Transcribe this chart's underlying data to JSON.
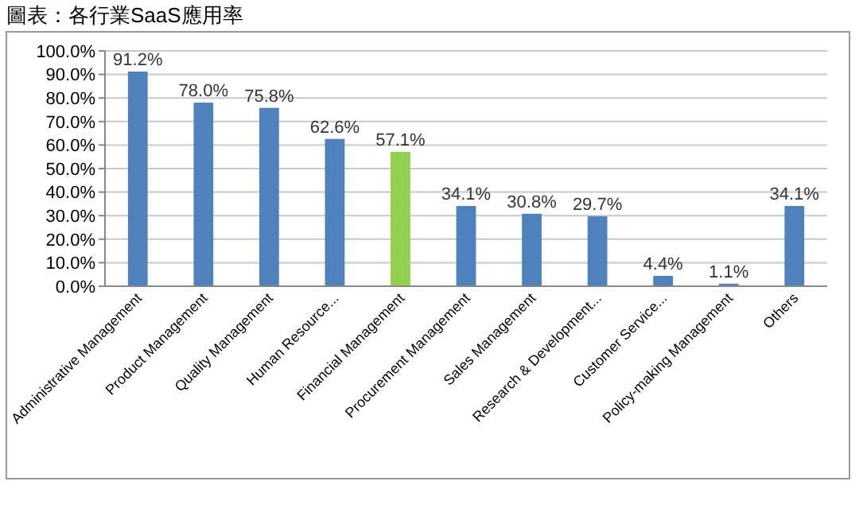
{
  "chart_data": {
    "type": "bar",
    "title": "圖表：各行業SaaS應用率",
    "categories": [
      "Administrative Management",
      "Product Management",
      "Quality Management",
      "Human Resource...",
      "Financial Management",
      "Procurement Management",
      "Sales Management",
      "Research & Development...",
      "Customer Service...",
      "Policy-making Management",
      "Others"
    ],
    "values": [
      91.2,
      78.0,
      75.8,
      62.6,
      57.1,
      34.1,
      30.8,
      29.7,
      4.4,
      1.1,
      34.1
    ],
    "value_labels": [
      "91.2%",
      "78.0%",
      "75.8%",
      "62.6%",
      "57.1%",
      "34.1%",
      "30.8%",
      "29.7%",
      "4.4%",
      "1.1%",
      "34.1%"
    ],
    "colors": [
      "#4f81bd",
      "#4f81bd",
      "#4f81bd",
      "#4f81bd",
      "#92d050",
      "#4f81bd",
      "#4f81bd",
      "#4f81bd",
      "#4f81bd",
      "#4f81bd",
      "#4f81bd"
    ],
    "ylim": [
      0,
      100
    ],
    "yticks": [
      {
        "value": 0,
        "label": "0.0%"
      },
      {
        "value": 10,
        "label": "10.0%"
      },
      {
        "value": 20,
        "label": "20.0%"
      },
      {
        "value": 30,
        "label": "30.0%"
      },
      {
        "value": 40,
        "label": "40.0%"
      },
      {
        "value": 50,
        "label": "50.0%"
      },
      {
        "value": 60,
        "label": "60.0%"
      },
      {
        "value": 70,
        "label": "70.0%"
      },
      {
        "value": 80,
        "label": "80.0%"
      },
      {
        "value": 90,
        "label": "90.0%"
      },
      {
        "value": 100,
        "label": "100.0%"
      }
    ],
    "grid": "y"
  }
}
